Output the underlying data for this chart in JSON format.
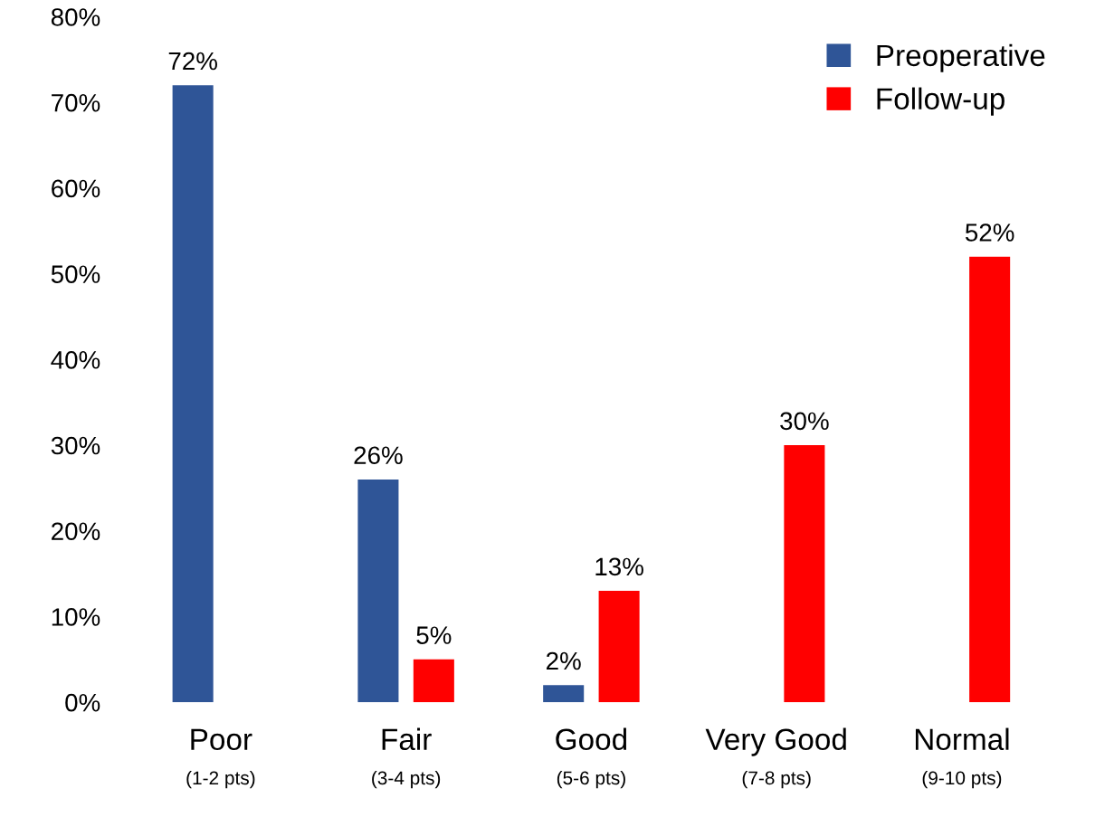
{
  "chart_data": {
    "type": "bar",
    "categories": [
      "Poor\n(1-2 pts)",
      "Fair\n(3-4 pts)",
      "Good\n(5-6 pts)",
      "Very Good\n(7-8 pts)",
      "Normal\n(9-10 pts)"
    ],
    "series": [
      {
        "name": "Preoperative",
        "color": "#2f5597",
        "values": [
          72,
          26,
          2,
          null,
          null
        ],
        "value_labels": [
          "72%",
          "26%",
          "2%",
          null,
          null
        ]
      },
      {
        "name": "Follow-up",
        "color": "#ff0000",
        "values": [
          null,
          5,
          13,
          30,
          52
        ],
        "value_labels": [
          null,
          "5%",
          "13%",
          "30%",
          "52%"
        ]
      }
    ],
    "ylim": [
      0,
      80
    ],
    "yticks": [
      {
        "value": 0,
        "label": "0%"
      },
      {
        "value": 10,
        "label": "10%"
      },
      {
        "value": 20,
        "label": "20%"
      },
      {
        "value": 30,
        "label": "30%"
      },
      {
        "value": 40,
        "label": "40%"
      },
      {
        "value": 50,
        "label": "50%"
      },
      {
        "value": 60,
        "label": "60%"
      },
      {
        "value": 70,
        "label": "70%"
      },
      {
        "value": 80,
        "label": "80%"
      }
    ],
    "grid": false,
    "legend": "top right"
  }
}
